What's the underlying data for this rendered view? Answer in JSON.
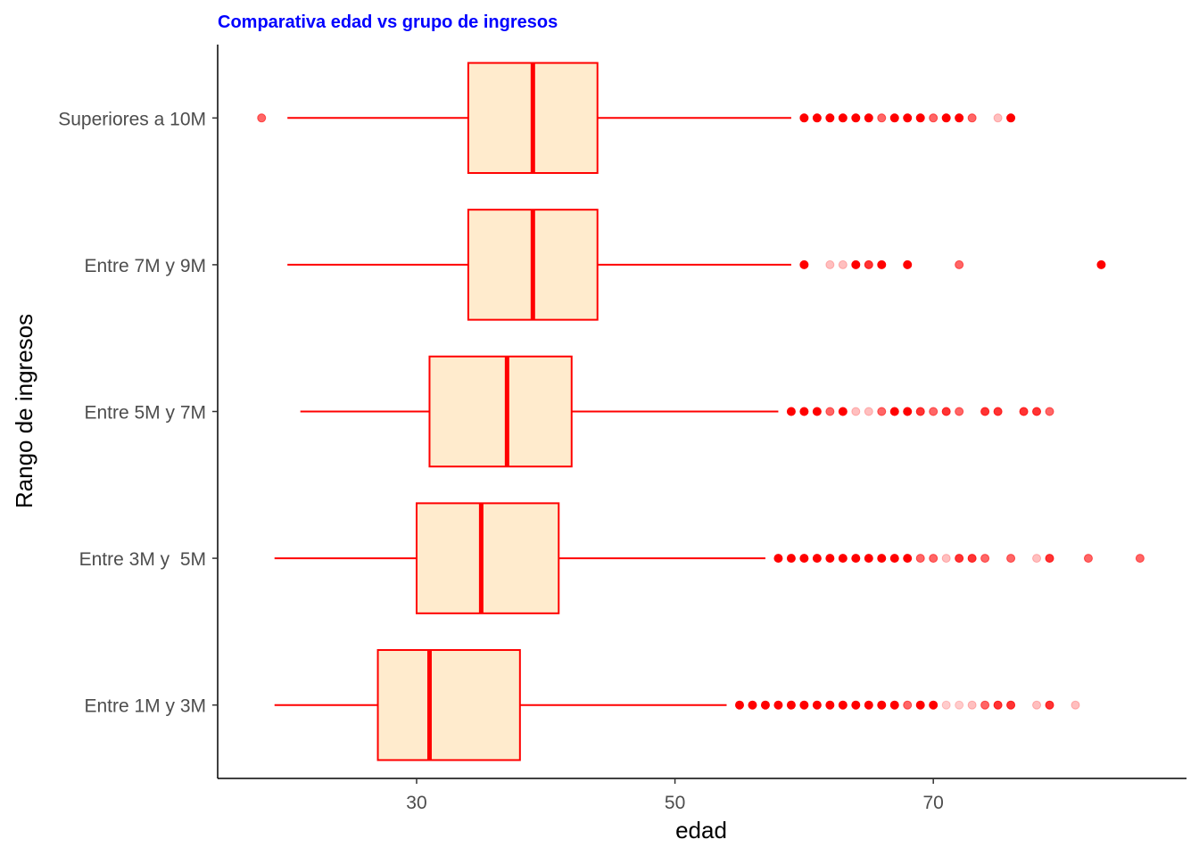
{
  "chart_data": {
    "type": "boxplot",
    "orientation": "horizontal",
    "title": "Comparativa edad vs grupo de ingresos",
    "xlabel": "edad",
    "ylabel": "Rango de ingresos",
    "xlim": [
      14.6,
      89.6
    ],
    "xticks": [
      30,
      50,
      70
    ],
    "grid": false,
    "colors": {
      "title": "#0000ff",
      "box_fill": "#ffebcd",
      "box_line": "#ff0000",
      "outlier": "#ff0000",
      "axis": "#000000"
    },
    "categories": [
      "Entre 1M y 3M",
      "Entre 3M y  5M",
      "Entre 5M y 7M",
      "Entre 7M y 9M",
      "Superiores a 10M"
    ],
    "boxes": [
      {
        "category": "Entre 1M y 3M",
        "whisker_low": 19,
        "q1": 27,
        "median": 31,
        "q3": 38,
        "whisker_high": 54,
        "outliers": [
          {
            "x": 55,
            "a": 1
          },
          {
            "x": 56,
            "a": 1
          },
          {
            "x": 57,
            "a": 1
          },
          {
            "x": 58,
            "a": 1
          },
          {
            "x": 59,
            "a": 1
          },
          {
            "x": 60,
            "a": 1
          },
          {
            "x": 61,
            "a": 1
          },
          {
            "x": 62,
            "a": 1
          },
          {
            "x": 63,
            "a": 1
          },
          {
            "x": 64,
            "a": 1
          },
          {
            "x": 65,
            "a": 1
          },
          {
            "x": 66,
            "a": 1
          },
          {
            "x": 67,
            "a": 1
          },
          {
            "x": 68,
            "a": 0.6
          },
          {
            "x": 69,
            "a": 1
          },
          {
            "x": 70,
            "a": 1
          },
          {
            "x": 71,
            "a": 0.2
          },
          {
            "x": 72,
            "a": 0.2
          },
          {
            "x": 73,
            "a": 0.25
          },
          {
            "x": 74,
            "a": 0.6
          },
          {
            "x": 75,
            "a": 0.8
          },
          {
            "x": 76,
            "a": 0.8
          },
          {
            "x": 78,
            "a": 0.25
          },
          {
            "x": 79,
            "a": 0.8
          },
          {
            "x": 81,
            "a": 0.25
          }
        ]
      },
      {
        "category": "Entre 3M y  5M",
        "whisker_low": 19,
        "q1": 30,
        "median": 35,
        "q3": 41,
        "whisker_high": 57,
        "outliers": [
          {
            "x": 58,
            "a": 1
          },
          {
            "x": 59,
            "a": 1
          },
          {
            "x": 60,
            "a": 1
          },
          {
            "x": 61,
            "a": 1
          },
          {
            "x": 62,
            "a": 1
          },
          {
            "x": 63,
            "a": 1
          },
          {
            "x": 64,
            "a": 1
          },
          {
            "x": 65,
            "a": 1
          },
          {
            "x": 66,
            "a": 1
          },
          {
            "x": 67,
            "a": 1
          },
          {
            "x": 68,
            "a": 1
          },
          {
            "x": 69,
            "a": 0.6
          },
          {
            "x": 70,
            "a": 0.6
          },
          {
            "x": 71,
            "a": 0.25
          },
          {
            "x": 72,
            "a": 0.8
          },
          {
            "x": 73,
            "a": 0.8
          },
          {
            "x": 74,
            "a": 0.6
          },
          {
            "x": 76,
            "a": 0.6
          },
          {
            "x": 78,
            "a": 0.25
          },
          {
            "x": 79,
            "a": 0.8
          },
          {
            "x": 82,
            "a": 0.6
          },
          {
            "x": 86,
            "a": 0.6
          }
        ]
      },
      {
        "category": "Entre 5M y 7M",
        "whisker_low": 21,
        "q1": 31,
        "median": 37,
        "q3": 42,
        "whisker_high": 58,
        "outliers": [
          {
            "x": 59,
            "a": 1
          },
          {
            "x": 60,
            "a": 1
          },
          {
            "x": 61,
            "a": 1
          },
          {
            "x": 62,
            "a": 0.6
          },
          {
            "x": 63,
            "a": 1
          },
          {
            "x": 64,
            "a": 0.25
          },
          {
            "x": 65,
            "a": 0.25
          },
          {
            "x": 66,
            "a": 0.6
          },
          {
            "x": 67,
            "a": 1
          },
          {
            "x": 68,
            "a": 1
          },
          {
            "x": 69,
            "a": 0.8
          },
          {
            "x": 70,
            "a": 0.6
          },
          {
            "x": 71,
            "a": 0.8
          },
          {
            "x": 72,
            "a": 0.6
          },
          {
            "x": 74,
            "a": 0.8
          },
          {
            "x": 75,
            "a": 0.8
          },
          {
            "x": 77,
            "a": 0.8
          },
          {
            "x": 78,
            "a": 0.8
          },
          {
            "x": 79,
            "a": 0.6
          }
        ]
      },
      {
        "category": "Entre 7M y 9M",
        "whisker_low": 20,
        "q1": 34,
        "median": 39,
        "q3": 44,
        "whisker_high": 59,
        "outliers": [
          {
            "x": 60,
            "a": 1
          },
          {
            "x": 62,
            "a": 0.25
          },
          {
            "x": 63,
            "a": 0.25
          },
          {
            "x": 64,
            "a": 1
          },
          {
            "x": 65,
            "a": 0.8
          },
          {
            "x": 66,
            "a": 1
          },
          {
            "x": 68,
            "a": 1
          },
          {
            "x": 72,
            "a": 0.6
          },
          {
            "x": 83,
            "a": 1
          }
        ]
      },
      {
        "category": "Superiores a 10M",
        "whisker_low": 20,
        "q1": 34,
        "median": 39,
        "q3": 44,
        "whisker_high": 59,
        "outliers": [
          {
            "x": 18,
            "a": 0.6
          },
          {
            "x": 60,
            "a": 1
          },
          {
            "x": 61,
            "a": 1
          },
          {
            "x": 62,
            "a": 1
          },
          {
            "x": 63,
            "a": 1
          },
          {
            "x": 64,
            "a": 1
          },
          {
            "x": 65,
            "a": 1
          },
          {
            "x": 66,
            "a": 0.6
          },
          {
            "x": 67,
            "a": 1
          },
          {
            "x": 68,
            "a": 1
          },
          {
            "x": 69,
            "a": 1
          },
          {
            "x": 70,
            "a": 0.6
          },
          {
            "x": 71,
            "a": 1
          },
          {
            "x": 72,
            "a": 1
          },
          {
            "x": 73,
            "a": 0.6
          },
          {
            "x": 75,
            "a": 0.25
          },
          {
            "x": 76,
            "a": 1
          }
        ]
      }
    ]
  }
}
